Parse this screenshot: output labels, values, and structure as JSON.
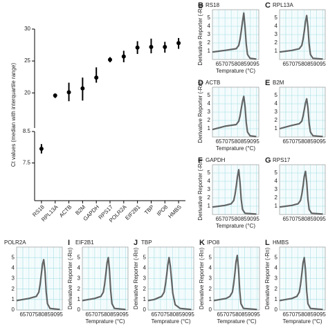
{
  "chart_data": [
    {
      "type": "dot_range",
      "ylabel": "Ct values (median with interquartile range)",
      "categories": [
        "RS18",
        "RPL13A",
        "ACTB",
        "B2M",
        "GAPDH",
        "RPS17",
        "POLR2A",
        "EIF2B1",
        "TBP",
        "IPO8",
        "HMBS"
      ],
      "values": [
        7.95,
        19.6,
        20.1,
        20.7,
        22.4,
        25.2,
        25.7,
        27.1,
        27.2,
        27.2,
        27.8
      ],
      "low": [
        7.8,
        19.2,
        18.7,
        18.8,
        21.6,
        24.8,
        24.8,
        26.1,
        26.2,
        26.3,
        26.9
      ],
      "high": [
        8.1,
        19.9,
        21.6,
        22.4,
        24.0,
        25.6,
        26.6,
        28.1,
        28.5,
        28.0,
        28.6
      ],
      "color": "#000000",
      "segments": [
        {
          "ylim": [
            14.5,
            30
          ],
          "yticks": [
            20,
            25,
            30
          ]
        },
        {
          "ylim": [
            6.3,
            8.5
          ],
          "yticks": [
            7.5,
            8.5
          ]
        }
      ]
    },
    {
      "type": "line",
      "letter": "B",
      "title": "RS18",
      "ylabel": "Derivative Reporter (-Rn)",
      "xlabel": "Temprature (°C)",
      "xlim": [
        60,
        97
      ],
      "ylim": [
        0,
        6
      ],
      "xticks": [
        65,
        70,
        75,
        80,
        85,
        90,
        95
      ],
      "yticks": [
        1,
        2,
        3,
        4,
        5
      ],
      "grid": true,
      "series": [
        {
          "color": "#4a4a4a",
          "x": [
            60,
            65,
            70,
            79,
            81,
            82,
            83,
            84,
            85,
            86,
            87,
            88,
            90,
            95
          ],
          "values": [
            0.9,
            1.0,
            1.1,
            1.3,
            1.7,
            2.4,
            3.4,
            4.6,
            5.6,
            3.9,
            1.8,
            0.6,
            0.15,
            0.05
          ]
        }
      ]
    },
    {
      "type": "line",
      "letter": "C",
      "title": "RPL13A",
      "xlim": [
        60,
        97
      ],
      "ylim": [
        0,
        6
      ],
      "xticks": [
        65,
        70,
        75,
        80,
        85,
        90,
        95
      ],
      "yticks": [
        1,
        2,
        3,
        4,
        5
      ],
      "grid": true,
      "series": [
        {
          "color": "#4a4a4a",
          "x": [
            60,
            65,
            70,
            76,
            78,
            79,
            80,
            81,
            82,
            83,
            84,
            85,
            87,
            95
          ],
          "values": [
            0.9,
            1.0,
            1.1,
            1.3,
            1.7,
            2.4,
            3.4,
            4.6,
            5.3,
            3.9,
            1.8,
            0.6,
            0.15,
            0.05
          ]
        }
      ]
    },
    {
      "type": "line",
      "letter": "D",
      "title": "ACTB",
      "ylabel": "Derivative Reporter (-Rn)",
      "xlabel": "Temprature (°C)",
      "xlim": [
        60,
        97
      ],
      "ylim": [
        0,
        6
      ],
      "xticks": [
        65,
        70,
        75,
        80,
        85,
        90,
        95
      ],
      "yticks": [
        1,
        2,
        3,
        4,
        5
      ],
      "grid": true,
      "series": [
        {
          "color": "#4a4a4a",
          "x": [
            60,
            65,
            70,
            79,
            81,
            82,
            83,
            84,
            85,
            86,
            87,
            88,
            90,
            95
          ],
          "values": [
            0.9,
            1.1,
            1.3,
            1.5,
            1.9,
            2.5,
            3.4,
            4.3,
            4.9,
            3.7,
            1.7,
            0.6,
            0.15,
            0.05
          ]
        }
      ]
    },
    {
      "type": "line",
      "letter": "E",
      "title": "B2M",
      "xlim": [
        60,
        97
      ],
      "ylim": [
        0,
        6
      ],
      "xticks": [
        65,
        70,
        75,
        80,
        85,
        90,
        95
      ],
      "yticks": [
        1,
        2,
        3,
        4,
        5
      ],
      "grid": true,
      "series": [
        {
          "color": "#4a4a4a",
          "x": [
            60,
            65,
            70,
            76,
            78,
            79,
            80,
            81,
            82,
            83,
            84,
            85,
            87,
            95
          ],
          "values": [
            1.0,
            1.2,
            1.4,
            1.6,
            1.9,
            2.5,
            3.3,
            4.1,
            4.6,
            3.5,
            1.6,
            0.6,
            0.15,
            0.05
          ]
        }
      ]
    },
    {
      "type": "line",
      "letter": "F",
      "title": "GAPDH",
      "ylabel": "Derivative Reporter (-Rn)",
      "xlabel": "Temprature (°C)",
      "xlim": [
        60,
        97
      ],
      "ylim": [
        0,
        6
      ],
      "xticks": [
        65,
        70,
        75,
        80,
        85,
        90,
        95
      ],
      "yticks": [
        1,
        2,
        3,
        4,
        5
      ],
      "grid": true,
      "series": [
        {
          "color": "#4a4a4a",
          "x": [
            60,
            65,
            70,
            75,
            77,
            78,
            79,
            80,
            81,
            82,
            83,
            84,
            86,
            95
          ],
          "values": [
            0.9,
            1.0,
            1.1,
            1.3,
            1.7,
            2.4,
            3.4,
            4.6,
            5.4,
            3.9,
            1.8,
            0.6,
            0.15,
            0.05
          ]
        }
      ]
    },
    {
      "type": "line",
      "letter": "G",
      "title": "RPS17",
      "xlim": [
        60,
        97
      ],
      "ylim": [
        0,
        6
      ],
      "xticks": [
        65,
        70,
        75,
        80,
        85,
        90,
        95
      ],
      "yticks": [
        1,
        2,
        3,
        4,
        5
      ],
      "grid": true,
      "series": [
        {
          "color": "#4a4a4a",
          "x": [
            60,
            65,
            70,
            75,
            77,
            78,
            79,
            80,
            81,
            82,
            83,
            84,
            86,
            95
          ],
          "values": [
            0.9,
            1.0,
            1.1,
            1.3,
            1.7,
            2.4,
            3.4,
            4.6,
            5.2,
            3.9,
            1.8,
            0.6,
            0.15,
            0.05
          ]
        }
      ]
    },
    {
      "type": "line",
      "title": "POLR2A",
      "xlim": [
        60,
        97
      ],
      "ylim": [
        0,
        6
      ],
      "xticks": [
        65,
        70,
        75,
        80,
        85,
        90,
        95
      ],
      "yticks": [
        0,
        1,
        2,
        3,
        4,
        5
      ],
      "grid": true,
      "series": [
        {
          "color": "#4a4a4a",
          "x": [
            60,
            65,
            70,
            76,
            78,
            79,
            80,
            81,
            82,
            83,
            84,
            85,
            87,
            95
          ],
          "values": [
            0.9,
            1.0,
            1.1,
            1.3,
            1.7,
            2.4,
            3.4,
            4.4,
            4.8,
            3.7,
            1.7,
            0.6,
            0.15,
            0.05
          ]
        }
      ]
    },
    {
      "type": "line",
      "letter": "I",
      "title": "EIF2B1",
      "ylabel": "Derivative Reporter (-Rn)",
      "xlabel": "Temprature (°C)",
      "xlim": [
        60,
        97
      ],
      "ylim": [
        0,
        6
      ],
      "xticks": [
        65,
        70,
        75,
        80,
        85,
        90,
        95
      ],
      "yticks": [
        0,
        1,
        2,
        3,
        4,
        5
      ],
      "grid": true,
      "series": [
        {
          "color": "#4a4a4a",
          "x": [
            60,
            65,
            70,
            75,
            77,
            78,
            79,
            80,
            81,
            82,
            83,
            84,
            86,
            95
          ],
          "values": [
            0.9,
            1.0,
            1.1,
            1.3,
            1.7,
            2.4,
            3.4,
            4.5,
            5.0,
            3.8,
            1.8,
            0.6,
            0.15,
            0.05
          ]
        }
      ]
    },
    {
      "type": "line",
      "letter": "J",
      "title": "TBP",
      "ylabel": "Derivative Reporter (-Rn)",
      "xlabel": "Temprature (°C)",
      "xlim": [
        60,
        97
      ],
      "ylim": [
        0,
        6
      ],
      "xticks": [
        65,
        70,
        75,
        80,
        85,
        90,
        95
      ],
      "yticks": [
        0,
        1,
        2,
        3,
        4,
        5
      ],
      "grid": true,
      "series": [
        {
          "color": "#4a4a4a",
          "x": [
            60,
            65,
            71,
            73,
            74,
            75,
            76,
            77,
            78,
            79,
            80,
            82,
            86,
            95
          ],
          "values": [
            0.9,
            1.0,
            1.3,
            1.7,
            2.4,
            3.3,
            4.3,
            5.0,
            4.2,
            2.9,
            1.6,
            0.5,
            0.15,
            0.05
          ]
        }
      ]
    },
    {
      "type": "line",
      "letter": "K",
      "title": "IPO8",
      "ylabel": "Derivative Reporter (-Rn)",
      "xlabel": "Temprature (°C)",
      "xlim": [
        60,
        97
      ],
      "ylim": [
        0,
        6
      ],
      "xticks": [
        65,
        70,
        75,
        80,
        85,
        90,
        95
      ],
      "yticks": [
        0,
        1,
        2,
        3,
        4,
        5
      ],
      "grid": true,
      "series": [
        {
          "color": "#4a4a4a",
          "x": [
            60,
            65,
            70,
            73,
            75,
            76,
            77,
            78,
            79,
            80,
            81,
            82,
            84,
            95
          ],
          "values": [
            0.9,
            1.0,
            1.1,
            1.3,
            1.7,
            2.4,
            3.4,
            4.6,
            5.2,
            3.9,
            1.8,
            0.6,
            0.15,
            0.05
          ]
        }
      ]
    },
    {
      "type": "line",
      "letter": "L",
      "title": "HMBS",
      "ylabel": "Derivative Reporter (-Rn)",
      "xlabel": "Temprature (°C)",
      "xlim": [
        60,
        97
      ],
      "ylim": [
        0,
        6
      ],
      "xticks": [
        65,
        70,
        75,
        80,
        85,
        90,
        95
      ],
      "yticks": [
        0,
        1,
        2,
        3,
        4,
        5
      ],
      "grid": true,
      "series": [
        {
          "color": "#4a4a4a",
          "x": [
            60,
            65,
            70,
            74,
            76,
            77,
            78,
            79,
            80,
            81,
            82,
            83,
            85,
            95
          ],
          "values": [
            0.9,
            1.0,
            1.1,
            1.3,
            1.7,
            2.4,
            3.4,
            4.5,
            5.0,
            3.8,
            1.8,
            0.6,
            0.15,
            0.05
          ]
        }
      ]
    }
  ]
}
